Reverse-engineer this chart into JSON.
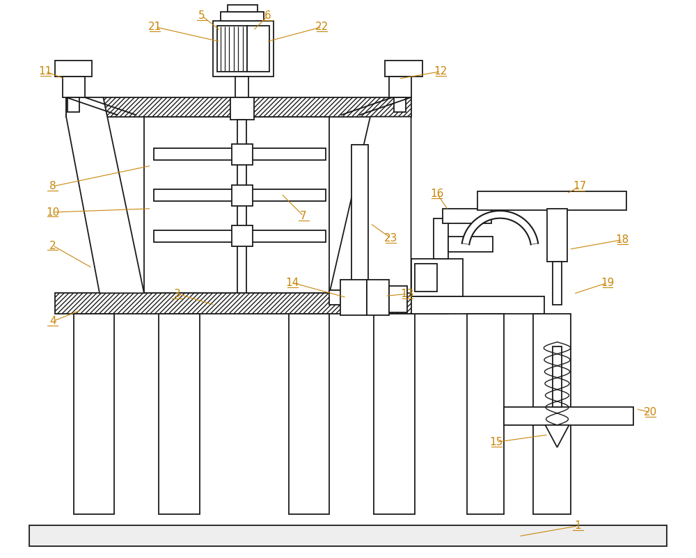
{
  "bg_color": "#ffffff",
  "line_color": "#1a1a1a",
  "label_color": "#c8860a",
  "figsize": [
    10.0,
    8.02
  ],
  "dpi": 100
}
